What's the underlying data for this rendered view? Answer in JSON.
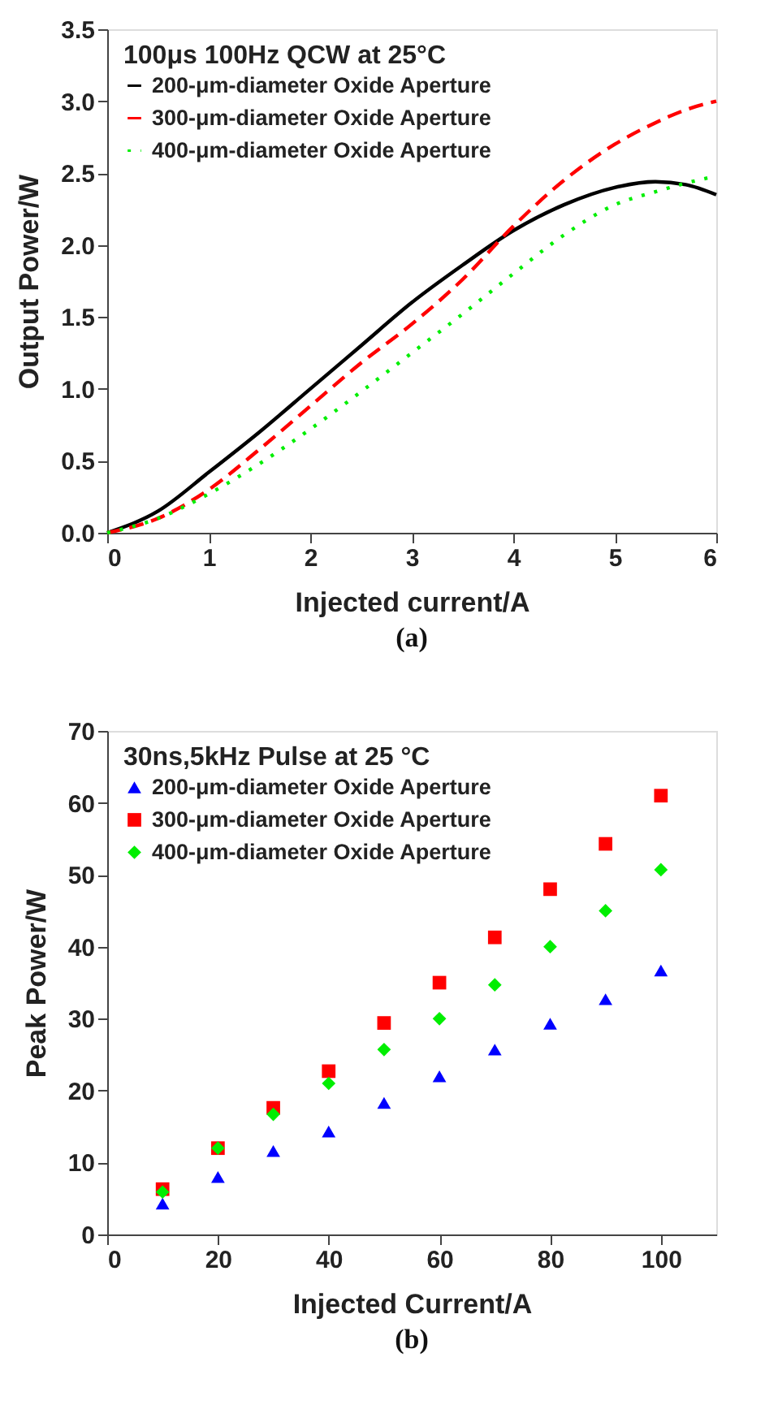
{
  "chart_data": [
    {
      "type": "line",
      "title": "100μs 100Hz QCW at 25°C",
      "xlabel": "Injected current/A",
      "ylabel": "Output Power/W",
      "annotations": [
        "(a)"
      ],
      "x": [
        0,
        0.5,
        1,
        1.5,
        2,
        2.5,
        3,
        3.5,
        4,
        4.5,
        5,
        5.4,
        5.7,
        6
      ],
      "series": [
        {
          "name": "200-μm-diameter Oxide Aperture",
          "color": "#000000",
          "line_style": "solid",
          "values": [
            0,
            0.15,
            0.42,
            0.7,
            1.0,
            1.3,
            1.6,
            1.86,
            2.1,
            2.28,
            2.4,
            2.44,
            2.42,
            2.35
          ]
        },
        {
          "name": "300-μm-diameter Oxide Aperture",
          "color": "#ff0000",
          "line_style": "dashed",
          "values": [
            0,
            0.1,
            0.3,
            0.58,
            0.88,
            1.18,
            1.45,
            1.76,
            2.13,
            2.45,
            2.7,
            2.85,
            2.94,
            3.0
          ]
        },
        {
          "name": "400-μm-diameter Oxide Aperture",
          "color": "#00ee00",
          "line_style": "dotted",
          "values": [
            0,
            0.1,
            0.27,
            0.48,
            0.72,
            0.98,
            1.25,
            1.52,
            1.8,
            2.07,
            2.28,
            2.37,
            2.43,
            2.48
          ]
        }
      ],
      "xlim": [
        0,
        6
      ],
      "xticks": [
        0,
        1,
        2,
        3,
        4,
        5,
        6
      ],
      "ylim": [
        0,
        3.5
      ],
      "yticks": [
        {
          "value": 0,
          "label": "0.0"
        },
        0.5,
        {
          "value": 1,
          "label": "1.0"
        },
        1.5,
        {
          "value": 2,
          "label": "2.0"
        },
        2.5,
        {
          "value": 3,
          "label": "3.0"
        },
        3.5
      ],
      "legend": "top left",
      "grid": false
    },
    {
      "type": "scatter",
      "title": "30ns,5kHz Pulse at 25 °C",
      "xlabel": "Injected Current/A",
      "ylabel": "Peak Power/W",
      "annotations": [
        "(b)"
      ],
      "x": [
        10,
        20,
        30,
        40,
        50,
        60,
        70,
        80,
        90,
        100
      ],
      "series": [
        {
          "name": "200-μm-diameter Oxide Aperture",
          "color": "#0000ff",
          "marker": "triangle",
          "values": [
            4.3,
            8,
            11.6,
            14.3,
            18.3,
            22,
            25.7,
            29.3,
            32.7,
            36.7
          ]
        },
        {
          "name": "300-μm-diameter Oxide Aperture",
          "color": "#ff0000",
          "marker": "square",
          "values": [
            6.3,
            12,
            17.6,
            22.7,
            29.4,
            35,
            41.3,
            48,
            54.3,
            61
          ]
        },
        {
          "name": "400-μm-diameter Oxide Aperture",
          "color": "#00ee00",
          "marker": "diamond",
          "values": [
            5.9,
            12,
            16.7,
            21,
            25.7,
            30,
            34.7,
            40,
            45,
            50.7
          ]
        }
      ],
      "xlim": [
        0,
        110
      ],
      "xticks": [
        0,
        20,
        40,
        60,
        80,
        100
      ],
      "ylim": [
        0,
        70
      ],
      "yticks": [
        0,
        10,
        20,
        30,
        40,
        50,
        60,
        70
      ],
      "legend": "top left",
      "grid": false
    }
  ]
}
